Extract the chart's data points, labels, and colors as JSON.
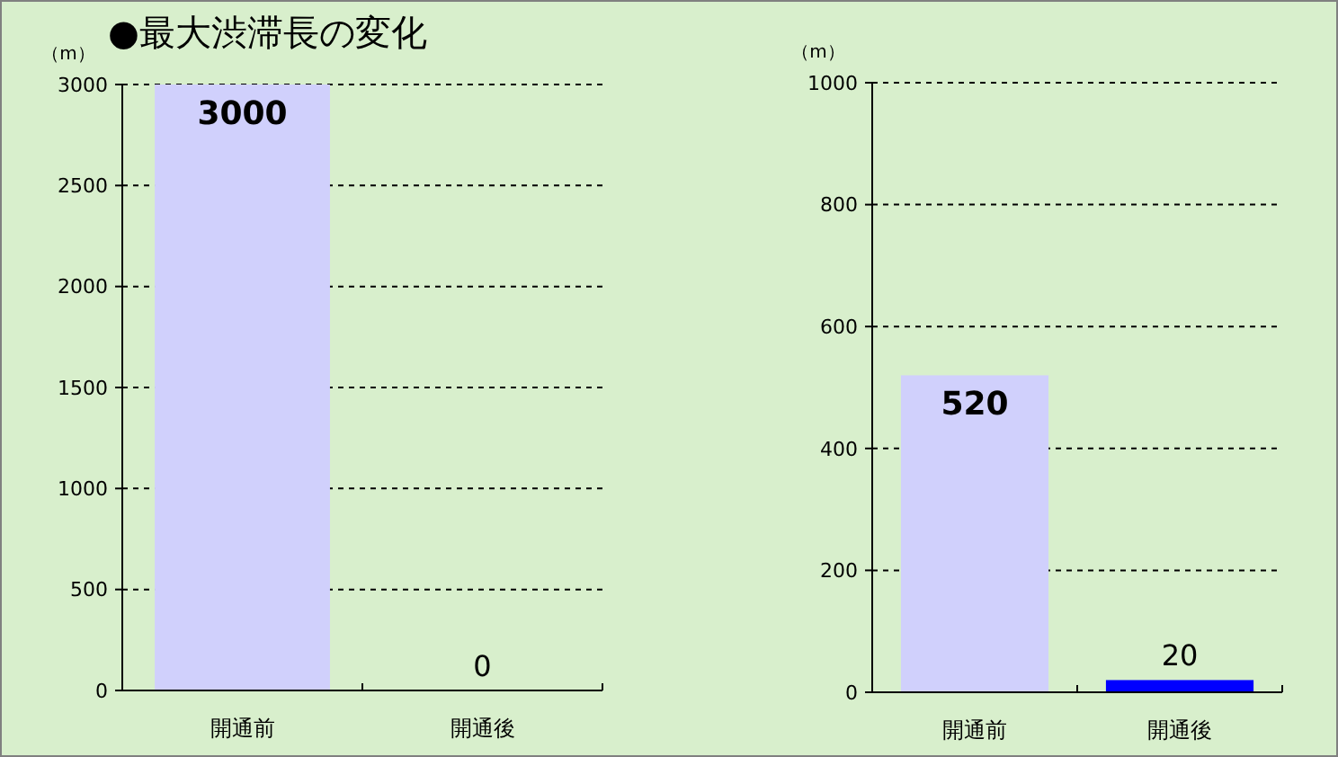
{
  "chart_data": [
    {
      "type": "bar",
      "title": "●最大渋滞長の変化",
      "ylabel": "（m）",
      "categories": [
        "開通前",
        "開通後"
      ],
      "values": [
        3000,
        0
      ],
      "colors": [
        "#d0d0fc",
        "#0000ff"
      ],
      "ylim": [
        0,
        3000
      ],
      "yticks": [
        0,
        500,
        1000,
        1500,
        2000,
        2500,
        3000
      ],
      "grid": "y",
      "data_labels": true
    },
    {
      "type": "bar",
      "ylabel": "（m）",
      "categories": [
        "開通前",
        "開通後"
      ],
      "values": [
        520,
        20
      ],
      "colors": [
        "#d0d0fc",
        "#0000ff"
      ],
      "ylim": [
        0,
        1000
      ],
      "yticks": [
        0,
        200,
        400,
        600,
        800,
        1000
      ],
      "grid": "y",
      "data_labels": true
    }
  ]
}
